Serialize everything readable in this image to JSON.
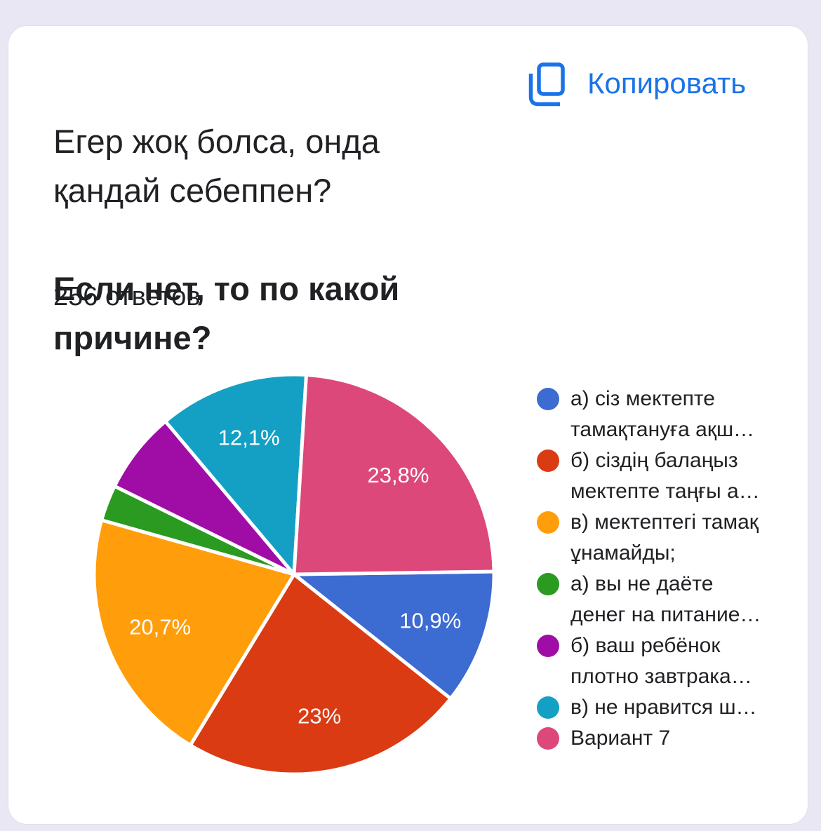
{
  "page": {
    "background_color": "#E9E7F3",
    "card_background": "#FFFFFF"
  },
  "header": {
    "title_kk": "Егер жоқ болса, онда\nқандай себеппен?",
    "title_ru": "Если нет, то по какой\nпричине?",
    "copy_label": "Копировать",
    "copy_icon": "copy-pages-icon",
    "accent_color": "#1A73E8",
    "responses": "256 ответов"
  },
  "chart_data": {
    "type": "pie",
    "title": "Егер жоқ болса, онда қандай себеппен? Если нет, то по какой причине?",
    "responses_total_label": "256 ответов",
    "legend_position": "right",
    "start_angle_deg": 89.2,
    "slice_stroke_color": "#FFFFFF",
    "slices": [
      {
        "legend_text": "а) сіз мектепте\nтамақтануға ақш…",
        "pct": 10.9,
        "display": "10,9%",
        "color": "#3C6BD1"
      },
      {
        "legend_text": "б) сіздің балаңыз\nмектепте таңғы а…",
        "pct": 23.0,
        "display": "23%",
        "color": "#DA3B13"
      },
      {
        "legend_text": "в) мектептегі тамақ\nұнамайды;",
        "pct": 20.7,
        "display": "20,7%",
        "color": "#FF9D0B"
      },
      {
        "legend_text": "а) вы не даёте\nденег на питание…",
        "pct": 2.9,
        "display": "",
        "color": "#2B9A20"
      },
      {
        "legend_text": "б) ваш ребёнок\nплотно завтрака…",
        "pct": 6.6,
        "display": "",
        "color": "#A00DA6"
      },
      {
        "legend_text": "в) не нравится ш…",
        "pct": 12.1,
        "display": "12,1%",
        "color": "#14A0C4"
      },
      {
        "legend_text": "Вариант 7",
        "pct": 23.8,
        "display": "23,8%",
        "color": "#DC4879"
      }
    ]
  }
}
